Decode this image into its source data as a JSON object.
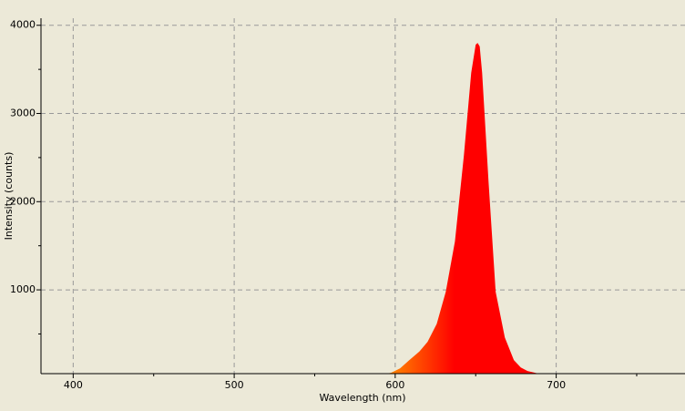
{
  "chart_data": {
    "type": "area",
    "xlabel": "Wavelength (nm)",
    "ylabel": "Intensity (counts)",
    "x": [
      595,
      597.5,
      603,
      608.8,
      615,
      620.1,
      625.8,
      631.4,
      637.1,
      642.7,
      647.2,
      650,
      651.2,
      652.5,
      654,
      658,
      662.4,
      668.1,
      673.7,
      678,
      682.2,
      687.9
    ],
    "series": [
      {
        "name": "Intensity",
        "color": "#ff0000",
        "gradient_start_color": "#ff8c00",
        "values": [
          50,
          60,
          110,
          204,
          300,
          410,
          615,
          977,
          1548,
          2530,
          3460,
          3780,
          3800,
          3760,
          3460,
          2220,
          977,
          460,
          204,
          120,
          80,
          55
        ]
      }
    ],
    "xlim": [
      380,
      780
    ],
    "ylim": [
      50,
      4080
    ],
    "xticks": [
      400,
      500,
      600,
      700
    ],
    "yticks": [
      1000,
      2000,
      3000,
      4000
    ],
    "xminorticks": [
      450,
      550,
      650,
      750
    ],
    "yminorticks": [
      500,
      1500,
      2500,
      3500
    ],
    "grid": true
  }
}
